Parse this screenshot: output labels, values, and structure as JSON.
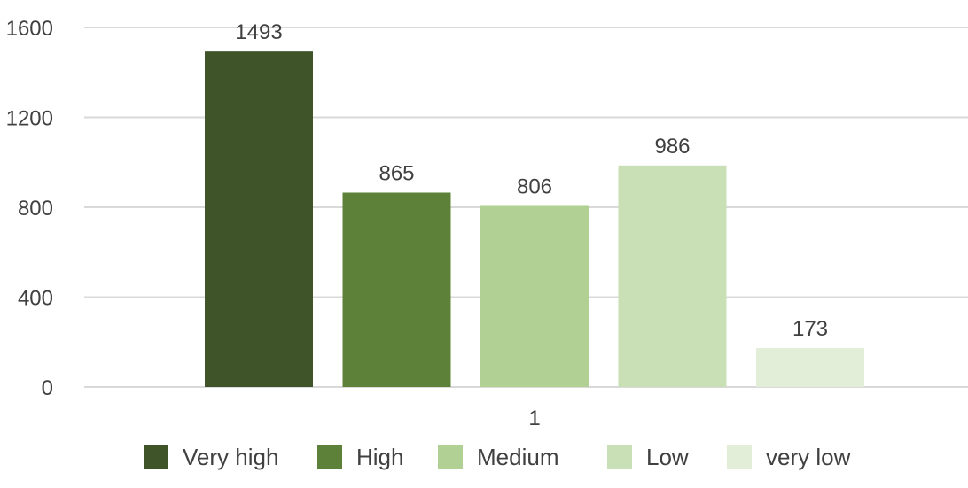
{
  "chart_data": {
    "type": "bar",
    "categories": [
      "1"
    ],
    "series": [
      {
        "name": "Very high",
        "values": [
          1493
        ],
        "color": "#3f5428"
      },
      {
        "name": "High",
        "values": [
          865
        ],
        "color": "#5e8139"
      },
      {
        "name": "Medium",
        "values": [
          806
        ],
        "color": "#b0d094"
      },
      {
        "name": "Low",
        "values": [
          986
        ],
        "color": "#c9dfb5"
      },
      {
        "name": "very low",
        "values": [
          173
        ],
        "color": "#e2eed7"
      }
    ],
    "ylim": [
      0,
      1600
    ],
    "yticks": [
      0,
      400,
      800,
      1200,
      1600
    ],
    "grid": true,
    "legend_position": "bottom",
    "data_labels": true
  }
}
